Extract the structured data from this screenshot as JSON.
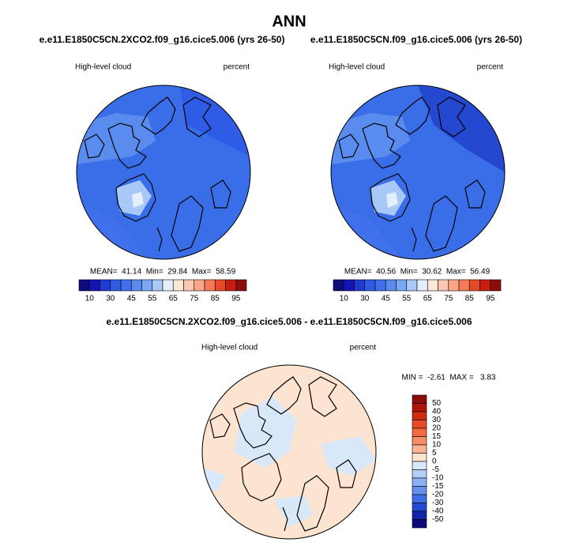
{
  "title": "ANN",
  "panels": [
    {
      "subtitle": "e.e11.E1850C5CN.2XCO2.f09_g16.cice5.006 (yrs 26-50)",
      "left_label": "High-level cloud",
      "right_label": "percent",
      "stats": "MEAN=  41.14  Min=  29.84  Max=  58.59",
      "colorbar": {
        "labels": [
          "10",
          "30",
          "45",
          "55",
          "65",
          "75",
          "85",
          "95"
        ],
        "colors": [
          "#0c0c7a",
          "#1414b4",
          "#1e3cd2",
          "#2e5ce6",
          "#4070ec",
          "#5a8cf0",
          "#7aa8f5",
          "#a8c8f8",
          "#e4eefc",
          "#fde8d8",
          "#fac8b0",
          "#f8a888",
          "#f47a58",
          "#e84a28",
          "#c81e10",
          "#8c0c08"
        ]
      }
    },
    {
      "subtitle": "e.e11.E1850C5CN.f09_g16.cice5.006 (yrs 26-50)",
      "left_label": "High-level cloud",
      "right_label": "percent",
      "stats": "MEAN=  40.56  Min=  30.62  Max=  56.49",
      "colorbar": {
        "labels": [
          "10",
          "30",
          "45",
          "55",
          "65",
          "75",
          "85",
          "95"
        ],
        "colors": [
          "#0c0c7a",
          "#1414b4",
          "#1e3cd2",
          "#2e5ce6",
          "#4070ec",
          "#5a8cf0",
          "#7aa8f5",
          "#a8c8f8",
          "#e4eefc",
          "#fde8d8",
          "#fac8b0",
          "#f8a888",
          "#f47a58",
          "#e84a28",
          "#c81e10",
          "#8c0c08"
        ]
      }
    }
  ],
  "difference": {
    "subtitle": "e.e11.E1850C5CN.2XCO2.f09_g16.cice5.006 - e.e11.E1850C5CN.f09_g16.cice5.006",
    "left_label": "High-level cloud",
    "right_label": "percent",
    "stats": "MIN =  -2.61  MAX =   3.83",
    "colorbar": {
      "labels": [
        "50",
        "40",
        "30",
        "20",
        "15",
        "10",
        "5",
        "0",
        "-5",
        "-10",
        "-15",
        "-20",
        "-30",
        "-40",
        "-50"
      ],
      "colors": [
        "#8c0c08",
        "#b01408",
        "#d02a10",
        "#e84a28",
        "#f46a40",
        "#f68c68",
        "#f9b494",
        "#fde4d0",
        "#d8e8f8",
        "#b4cef6",
        "#8cb0f2",
        "#6690ec",
        "#3e6ce4",
        "#2448d0",
        "#1224a8",
        "#0a0a78"
      ]
    }
  }
}
